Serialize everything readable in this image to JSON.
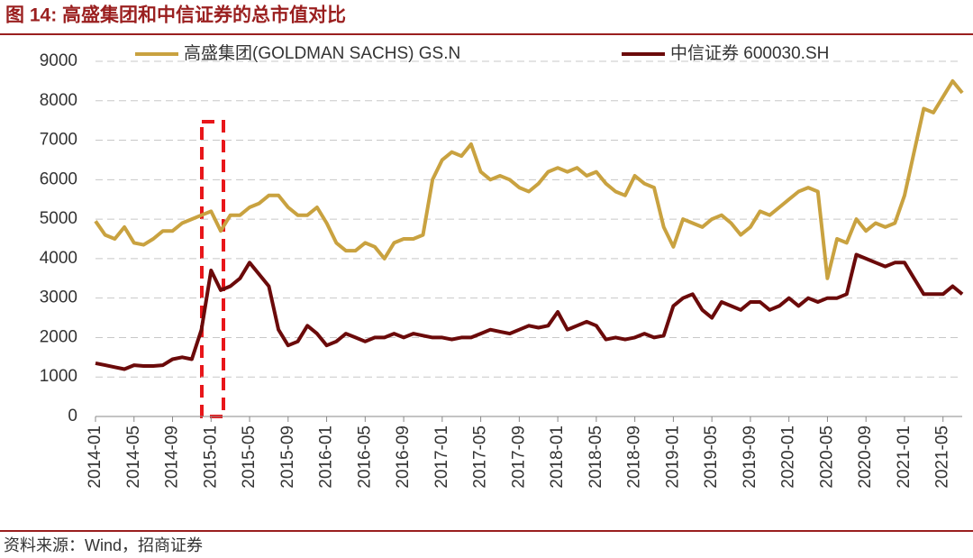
{
  "chart_data": {
    "type": "line",
    "title": "图 14:  高盛集团和中信证券的总市值对比",
    "source": "资料来源：Wind，招商证券",
    "x": [
      "2014-01",
      "2014-02",
      "2014-03",
      "2014-04",
      "2014-05",
      "2014-06",
      "2014-07",
      "2014-08",
      "2014-09",
      "2014-10",
      "2014-11",
      "2014-12",
      "2015-01",
      "2015-02",
      "2015-03",
      "2015-04",
      "2015-05",
      "2015-06",
      "2015-07",
      "2015-08",
      "2015-09",
      "2015-10",
      "2015-11",
      "2015-12",
      "2016-01",
      "2016-02",
      "2016-03",
      "2016-04",
      "2016-05",
      "2016-06",
      "2016-07",
      "2016-08",
      "2016-09",
      "2016-10",
      "2016-11",
      "2016-12",
      "2017-01",
      "2017-02",
      "2017-03",
      "2017-04",
      "2017-05",
      "2017-06",
      "2017-07",
      "2017-08",
      "2017-09",
      "2017-10",
      "2017-11",
      "2017-12",
      "2018-01",
      "2018-02",
      "2018-03",
      "2018-04",
      "2018-05",
      "2018-06",
      "2018-07",
      "2018-08",
      "2018-09",
      "2018-10",
      "2018-11",
      "2018-12",
      "2019-01",
      "2019-02",
      "2019-03",
      "2019-04",
      "2019-05",
      "2019-06",
      "2019-07",
      "2019-08",
      "2019-09",
      "2019-10",
      "2019-11",
      "2019-12",
      "2020-01",
      "2020-02",
      "2020-03",
      "2020-04",
      "2020-05",
      "2020-06",
      "2020-07",
      "2020-08",
      "2020-09",
      "2020-10",
      "2020-11",
      "2020-12",
      "2021-01",
      "2021-02",
      "2021-03",
      "2021-04",
      "2021-05",
      "2021-06",
      "2021-07"
    ],
    "series": [
      {
        "name": "高盛集团(GOLDMAN SACHS) GS.N",
        "color": "#c9a240",
        "values": [
          4950,
          4600,
          4500,
          4800,
          4400,
          4350,
          4500,
          4700,
          4700,
          4900,
          5000,
          5100,
          5200,
          4700,
          5100,
          5100,
          5300,
          5400,
          5600,
          5600,
          5300,
          5100,
          5100,
          5300,
          4900,
          4400,
          4200,
          4200,
          4400,
          4300,
          4000,
          4400,
          4500,
          4500,
          4600,
          6000,
          6500,
          6700,
          6600,
          6900,
          6200,
          6000,
          6100,
          6000,
          5800,
          5700,
          5900,
          6200,
          6300,
          6200,
          6300,
          6100,
          6200,
          5900,
          5700,
          5600,
          6100,
          5900,
          5800,
          4800,
          4300,
          5000,
          4900,
          4800,
          5000,
          5100,
          4900,
          4600,
          4800,
          5200,
          5100,
          5300,
          5500,
          5700,
          5800,
          5700,
          3500,
          4500,
          4400,
          5000,
          4700,
          4900,
          4800,
          4900,
          5600,
          6700,
          7800,
          7700,
          8100,
          8500,
          8200
        ]
      },
      {
        "name": "中信证券 600030.SH",
        "color": "#6b0a0a",
        "values": [
          1350,
          1300,
          1250,
          1200,
          1300,
          1280,
          1280,
          1300,
          1450,
          1500,
          1450,
          2200,
          3700,
          3200,
          3300,
          3500,
          3900,
          3600,
          3300,
          2200,
          1800,
          1900,
          2300,
          2100,
          1800,
          1900,
          2100,
          2000,
          1900,
          2000,
          2000,
          2100,
          2000,
          2100,
          2050,
          2000,
          2000,
          1950,
          2000,
          2000,
          2100,
          2200,
          2150,
          2100,
          2200,
          2300,
          2250,
          2300,
          2650,
          2200,
          2300,
          2400,
          2300,
          1950,
          2000,
          1950,
          2000,
          2100,
          2000,
          2050,
          2800,
          3000,
          3100,
          2700,
          2500,
          2900,
          2800,
          2700,
          2900,
          2900,
          2700,
          2800,
          3000,
          2800,
          3000,
          2900,
          3000,
          3000,
          3100,
          4100,
          4000,
          3900,
          3800,
          3900,
          3900,
          3500,
          3100,
          3100,
          3100,
          3300,
          3100
        ]
      }
    ],
    "xticks": [
      "2014-01",
      "2014-05",
      "2014-09",
      "2015-01",
      "2015-05",
      "2015-09",
      "2016-01",
      "2016-05",
      "2016-09",
      "2017-01",
      "2017-05",
      "2017-09",
      "2018-01",
      "2018-05",
      "2018-09",
      "2019-01",
      "2019-05",
      "2019-09",
      "2020-01",
      "2020-05",
      "2020-09",
      "2021-01",
      "2021-05"
    ],
    "ylim": [
      0,
      9000
    ],
    "yticks": [
      0,
      1000,
      2000,
      3000,
      4000,
      5000,
      6000,
      7000,
      8000,
      9000
    ],
    "grid": true
  }
}
